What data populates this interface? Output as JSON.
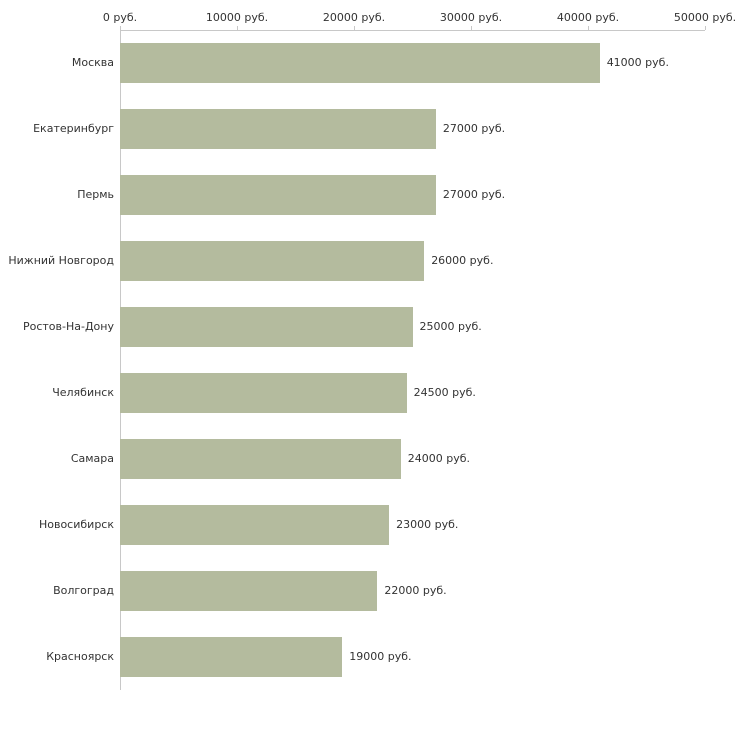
{
  "chart_data": {
    "type": "bar",
    "orientation": "horizontal",
    "title": "",
    "xlabel": "",
    "ylabel": "",
    "categories": [
      "Москва",
      "Екатеринбург",
      "Пермь",
      "Нижний Новгород",
      "Ростов-На-Дону",
      "Челябинск",
      "Самара",
      "Новосибирск",
      "Волгоград",
      "Красноярск"
    ],
    "values": [
      41000,
      27000,
      27000,
      26000,
      25000,
      24500,
      24000,
      23000,
      22000,
      19000
    ],
    "value_labels": [
      "41000 руб.",
      "27000 руб.",
      "27000 руб.",
      "26000 руб.",
      "25000 руб.",
      "24500 руб.",
      "24000 руб.",
      "23000 руб.",
      "22000 руб.",
      "19000 руб."
    ],
    "x_ticks": [
      0,
      10000,
      20000,
      30000,
      40000,
      50000
    ],
    "x_tick_labels": [
      "0 руб.",
      "10000 руб.",
      "20000 руб.",
      "30000 руб.",
      "40000 руб.",
      "50000 руб."
    ],
    "xlim": [
      0,
      50000
    ],
    "grid": false,
    "legend": false,
    "bar_color": "#b4bb9e",
    "axis_color": "#c8c8c8",
    "text_color": "#333333",
    "background_color": "#ffffff"
  }
}
